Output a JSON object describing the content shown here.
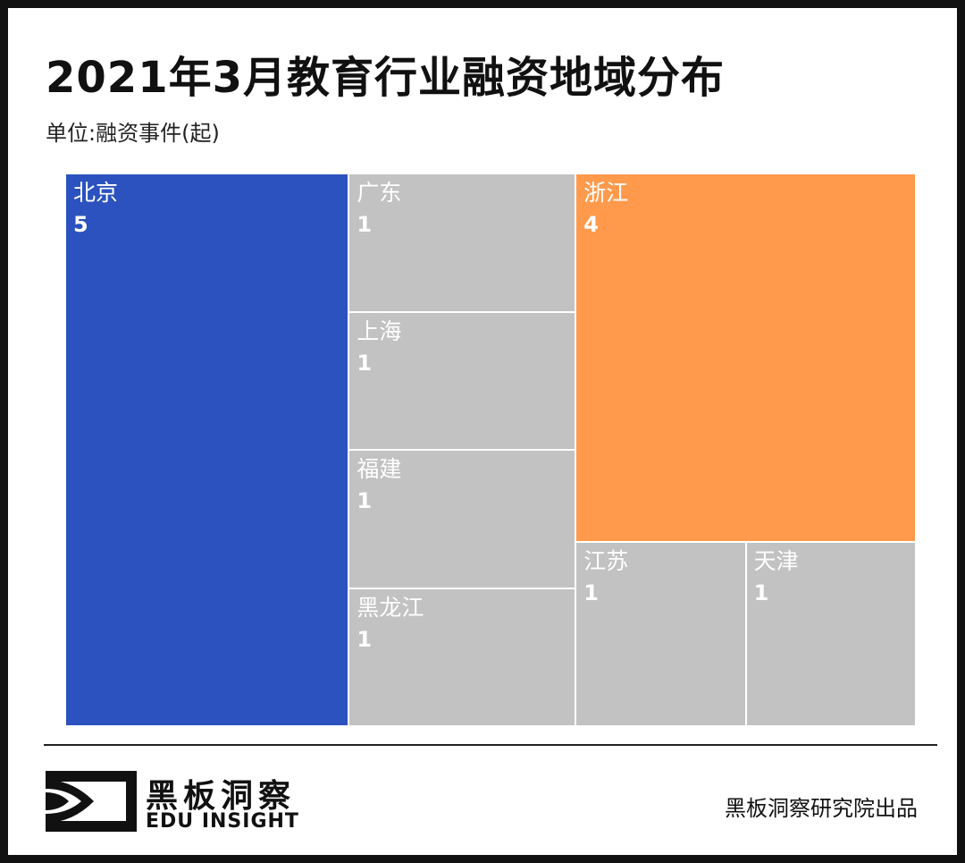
{
  "title": "2021年3月教育行业融资地域分布",
  "subtitle": "单位:融资事件(起)",
  "chart_data": {
    "type": "treemap",
    "title": "2021年3月教育行业融资地域分布",
    "unit": "单位:融资事件(起)",
    "items": [
      {
        "name": "北京",
        "value": 5
      },
      {
        "name": "浙江",
        "value": 4
      },
      {
        "name": "广东",
        "value": 1
      },
      {
        "name": "上海",
        "value": 1
      },
      {
        "name": "福建",
        "value": 1
      },
      {
        "name": "黑龙江",
        "value": 1
      },
      {
        "name": "江苏",
        "value": 1
      },
      {
        "name": "天津",
        "value": 1
      }
    ],
    "colors": {
      "北京": "#2B52BE",
      "浙江": "#FF9A4D",
      "default": "#C2C2C2"
    }
  },
  "footer": {
    "brand_cn": "黑板洞察",
    "brand_en": "EDU INSIGHT",
    "credit": "黑板洞察研究院出品"
  }
}
